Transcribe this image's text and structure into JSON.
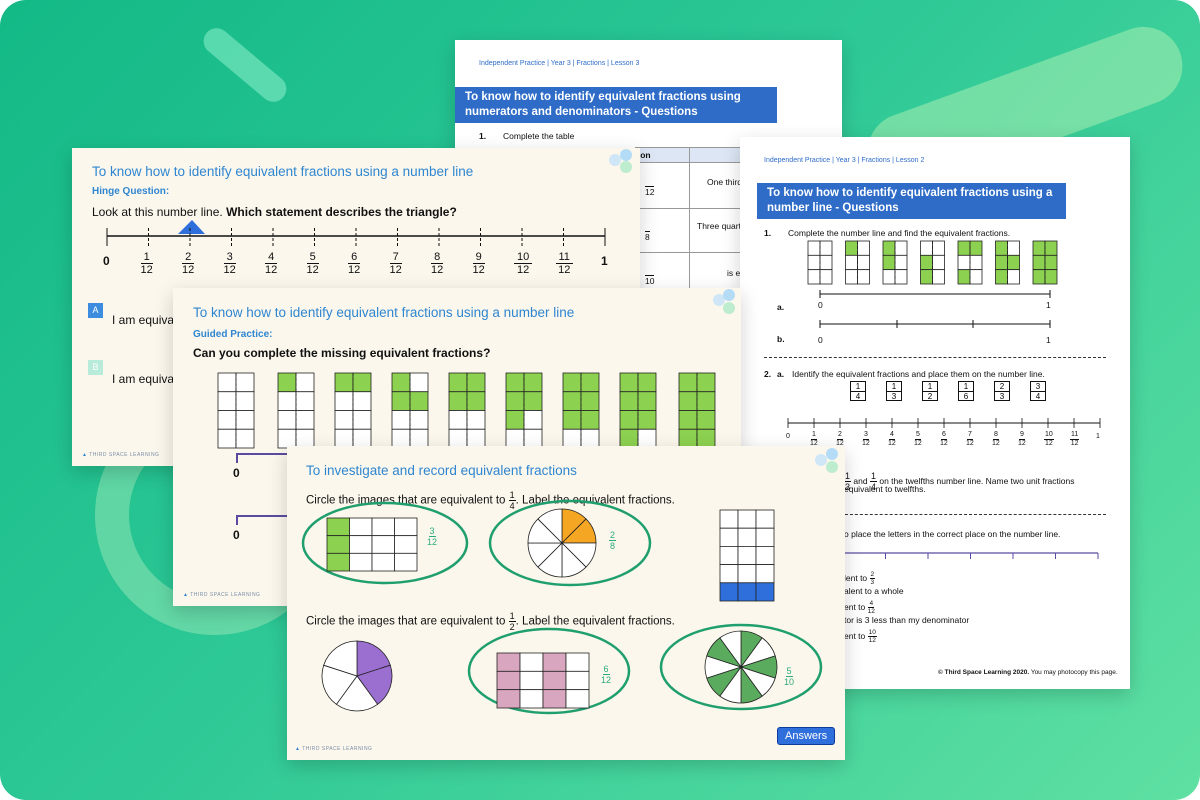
{
  "worksheet_lesson3": {
    "header": "Independent Practice | Year 3 | Fractions | Lesson 3",
    "title": "To know how to identify equivalent fractions using numerators and denominators - Questions",
    "q1_num": "1.",
    "q1_text": "Complete the table",
    "table_header": "tion",
    "row1": "One third",
    "row2": "Three quart",
    "row3": "is ec",
    "row_den": [
      "12",
      "8",
      "10"
    ]
  },
  "worksheet_lesson2": {
    "header": "Independent Practice | Year 3 | Fractions | Lesson 2",
    "title": "To know how to identify equivalent fractions using a number line - Questions",
    "q1_num": "1.",
    "q1_text": "Complete the number line and find the equivalent fractions.",
    "a": "a.",
    "b": "b.",
    "zero": "0",
    "one": "1",
    "q2_num": "2.",
    "q2_a": "a.",
    "q2_text": "Identify the equivalent fractions and place them on the number line.",
    "fraction_boxes": [
      [
        "1",
        "4"
      ],
      [
        "1",
        "3"
      ],
      [
        "1",
        "2"
      ],
      [
        "1",
        "6"
      ],
      [
        "2",
        "3"
      ],
      [
        "3",
        "4"
      ]
    ],
    "twelfths": [
      "1",
      "2",
      "3",
      "4",
      "5",
      "6",
      "7",
      "8",
      "9",
      "10",
      "11"
    ],
    "twelfths_den": "12",
    "q2_b_text1": "and",
    "q2_b_text2": "on the twelfths number line. Name two unit fractions",
    "q2_b_text3": "equivalent to twelfths.",
    "q3_text": "o place the letters in the correct place on the number line.",
    "clues": [
      "lent to",
      "alent to a whole",
      "ent to",
      "tor is 3 less than my denominator",
      "ent to"
    ],
    "clue_fracs": [
      [
        "2",
        "3"
      ],
      null,
      [
        "4",
        "12"
      ],
      null,
      [
        "10",
        "12"
      ]
    ],
    "copyright_bold": "© Third Space Learning 2020.",
    "copyright": "You may photocopy this page."
  },
  "slide_hinge": {
    "title": "To know how to identify equivalent fractions using a number line",
    "subtitle": "Hinge Question:",
    "prompt": "Look at this number line.",
    "prompt_bold": "Which statement describes the triangle?",
    "ticks": [
      "0",
      "1",
      "2",
      "3",
      "4",
      "5",
      "6",
      "7",
      "8",
      "9",
      "10",
      "11",
      "1"
    ],
    "den": "12",
    "optA_letter": "A",
    "optA_text": "I am equiva",
    "optB_letter": "B",
    "optB_text": "I am equiva",
    "logo": "THIRD SPACE LEARNING"
  },
  "slide_guided": {
    "title": "To know how to identify equivalent fractions using a number line",
    "subtitle": "Guided Practice:",
    "prompt": "Can you complete the missing equivalent fractions?",
    "zero1": "0",
    "zero2": "0",
    "logo": "THIRD SPACE LEARNING"
  },
  "slide_investigate": {
    "title": "To investigate and record equivalent fractions",
    "prompt1": "Circle the images that are equivalent to",
    "prompt1_frac": [
      "1",
      "4"
    ],
    "prompt1_end": ". Label the equivalent fractions.",
    "label1": [
      "3",
      "12"
    ],
    "label2": [
      "2",
      "8"
    ],
    "prompt2": "Circle the images that are equivalent to",
    "prompt2_frac": [
      "1",
      "2"
    ],
    "prompt2_end": ". Label the equivalent fractions.",
    "label3": [
      "6",
      "12"
    ],
    "label4": [
      "5",
      "10"
    ],
    "answers": "Answers",
    "logo": "THIRD SPACE LEARNING"
  },
  "colors": {
    "green": "#8dd150",
    "orange": "#f5a623",
    "purple": "#9b6fd0",
    "pink": "#d9a6bf",
    "blue": "#2f6fdc",
    "dark_green": "#57a85a",
    "title_blue": "#2f86d1"
  }
}
